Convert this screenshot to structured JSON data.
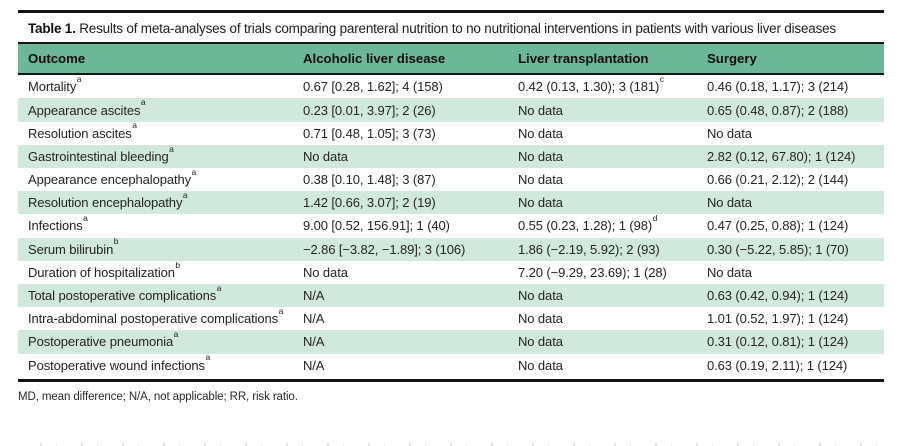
{
  "colors": {
    "header_bg": "#6bb798",
    "stripe_bg": "#d1e8dc",
    "rule": "#141414"
  },
  "table": {
    "label": "Table 1.",
    "caption": "Results of meta-analyses of trials comparing parenteral nutrition to no nutritional interventions in patients with various liver diseases",
    "columns": [
      "Outcome",
      "Alcoholic liver disease",
      "Liver transplantation",
      "Surgery"
    ],
    "rows": [
      {
        "outcome": "Mortality",
        "outcome_sup": "a",
        "cells": [
          "0.67 [0.28, 1.62]; 4 (158)",
          "0.42 (0.13, 1.30); 3 (181)",
          "0.46 (0.18, 1.17); 3 (214)"
        ],
        "cell_sups": [
          "",
          "c",
          ""
        ]
      },
      {
        "outcome": "Appearance ascites",
        "outcome_sup": "a",
        "cells": [
          "0.23 [0.01, 3.97]; 2 (26)",
          "No data",
          "0.65 (0.48, 0.87); 2 (188)"
        ],
        "cell_sups": [
          "",
          "",
          ""
        ]
      },
      {
        "outcome": "Resolution ascites",
        "outcome_sup": "a",
        "cells": [
          "0.71 [0.48, 1.05]; 3 (73)",
          "No data",
          "No data"
        ],
        "cell_sups": [
          "",
          "",
          ""
        ]
      },
      {
        "outcome": "Gastrointestinal bleeding",
        "outcome_sup": "a",
        "cells": [
          "No data",
          "No data",
          "2.82 (0.12, 67.80); 1 (124)"
        ],
        "cell_sups": [
          "",
          "",
          ""
        ]
      },
      {
        "outcome": "Appearance encephalopathy",
        "outcome_sup": "a",
        "cells": [
          "0.38 [0.10, 1.48]; 3 (87)",
          "No data",
          "0.66 (0.21, 2.12); 2 (144)"
        ],
        "cell_sups": [
          "",
          "",
          ""
        ]
      },
      {
        "outcome": "Resolution encephalopathy",
        "outcome_sup": "a",
        "cells": [
          "1.42 [0.66, 3.07]; 2 (19)",
          "No data",
          "No data"
        ],
        "cell_sups": [
          "",
          "",
          ""
        ]
      },
      {
        "outcome": "Infections",
        "outcome_sup": "a",
        "cells": [
          "9.00 [0.52, 156.91]; 1 (40)",
          "0.55 (0.23, 1.28); 1 (98)",
          "0.47 (0.25, 0.88); 1 (124)"
        ],
        "cell_sups": [
          "",
          "d",
          ""
        ]
      },
      {
        "outcome": "Serum bilirubin",
        "outcome_sup": "b",
        "cells": [
          "−2.86 [−3.82, −1.89]; 3 (106)",
          "1.86 (−2.19, 5.92); 2 (93)",
          "0.30 (−5.22, 5.85); 1 (70)"
        ],
        "cell_sups": [
          "",
          "",
          ""
        ]
      },
      {
        "outcome": "Duration of hospitalization",
        "outcome_sup": "b",
        "cells": [
          "No data",
          "7.20 (−9.29, 23.69); 1 (28)",
          "No data"
        ],
        "cell_sups": [
          "",
          "",
          ""
        ]
      },
      {
        "outcome": "Total postoperative complications",
        "outcome_sup": "a",
        "cells": [
          "N/A",
          "No data",
          "0.63 (0.42, 0.94); 1 (124)"
        ],
        "cell_sups": [
          "",
          "",
          ""
        ]
      },
      {
        "outcome": "Intra-abdominal postoperative complications",
        "outcome_sup": "a",
        "cells": [
          "N/A",
          "No data",
          "1.01 (0.52, 1.97); 1 (124)"
        ],
        "cell_sups": [
          "",
          "",
          ""
        ]
      },
      {
        "outcome": "Postoperative pneumonia",
        "outcome_sup": "a",
        "cells": [
          "N/A",
          "No data",
          "0.31 (0.12, 0.81); 1 (124)"
        ],
        "cell_sups": [
          "",
          "",
          ""
        ]
      },
      {
        "outcome": "Postoperative wound infections",
        "outcome_sup": "a",
        "cells": [
          "N/A",
          "No data",
          "0.63 (0.19, 2.11); 1 (124)"
        ],
        "cell_sups": [
          "",
          "",
          ""
        ]
      }
    ],
    "footnote": "MD, mean difference; N/A, not applicable; RR, risk ratio."
  }
}
